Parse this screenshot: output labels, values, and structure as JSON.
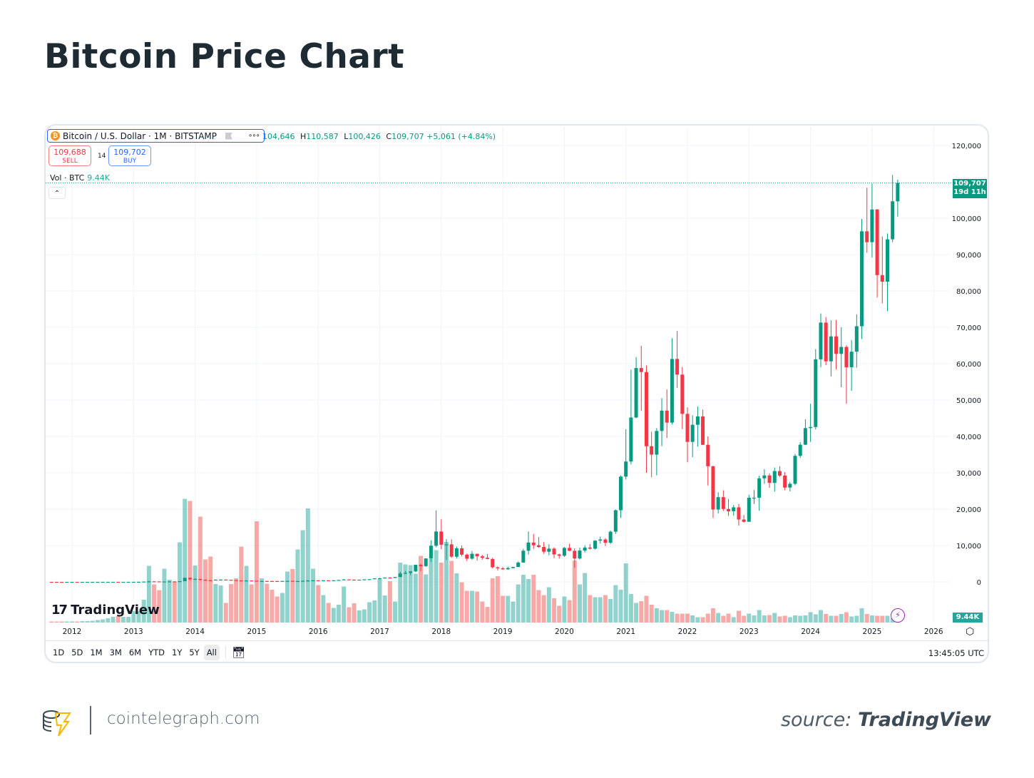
{
  "page": {
    "title": "Bitcoin Price Chart"
  },
  "legend": {
    "symbol_icon": "bitcoin-icon",
    "symbol": "Bitcoin / U.S. Dollar · 1M · BITSTAMP",
    "open_value": "104,646",
    "high_label": "H",
    "high_value": "110,587",
    "low_label": "L",
    "low_value": "100,426",
    "close_label": "C",
    "close_value": "109,707",
    "change": "+5,061 (+4.84%)"
  },
  "trade": {
    "sell_price": "109,688",
    "sell_label": "SELL",
    "spread": "14",
    "buy_price": "109,702",
    "buy_label": "BUY"
  },
  "volume_legend": {
    "label": "Vol · BTC",
    "value": "9.44K"
  },
  "price_tag": {
    "price": "109,707",
    "countdown": "19d 11h"
  },
  "volume_tag": "9.44K",
  "watermark": "TradingView",
  "toolbar": {
    "ranges": [
      "1D",
      "5D",
      "1M",
      "3M",
      "6M",
      "YTD",
      "1Y",
      "5Y",
      "All"
    ],
    "active": "All",
    "clock": "13:45:05 UTC"
  },
  "footer": {
    "site": "cointelegraph.com",
    "source_prefix": "source:",
    "source_name": "TradingView"
  },
  "colors": {
    "up": "#089981",
    "down": "#f23645",
    "vol_up": "#26a69a",
    "vol_down": "#ef5350",
    "price_line": "#089981"
  },
  "chart_data": {
    "type": "candlestick",
    "interval": "1M",
    "start": "2011-09",
    "ylim": [
      -11000,
      123000
    ],
    "yticks": [
      0,
      10000,
      20000,
      30000,
      40000,
      50000,
      60000,
      70000,
      80000,
      90000,
      100000,
      110000,
      120000
    ],
    "ytick_labels": [
      "0",
      "10,000",
      "20,000",
      "30,000",
      "40,000",
      "50,000",
      "60,000",
      "70,000",
      "80,000",
      "90,000",
      "100,000",
      "",
      "120,000"
    ],
    "xtick_labels": [
      "2012",
      "2013",
      "2014",
      "2015",
      "2016",
      "2017",
      "2018",
      "2019",
      "2020",
      "2021",
      "2022",
      "2023",
      "2024",
      "2025",
      "2026"
    ],
    "last_price": 109707,
    "grid": true,
    "ohlc": [
      [
        8.2,
        8.2,
        4.8,
        5.1
      ],
      [
        5.1,
        5.2,
        2.3,
        3.2
      ],
      [
        3.2,
        3.5,
        2.0,
        3.0
      ],
      [
        3.0,
        4.6,
        2.8,
        4.2
      ],
      [
        4.2,
        7.2,
        4.2,
        5.5
      ],
      [
        5.5,
        6.1,
        4.3,
        4.9
      ],
      [
        4.9,
        5.4,
        4.6,
        4.9
      ],
      [
        4.9,
        5.2,
        4.7,
        5.0
      ],
      [
        5.0,
        5.2,
        4.9,
        5.2
      ],
      [
        5.2,
        6.7,
        5.2,
        6.6
      ],
      [
        6.6,
        9.6,
        6.5,
        9.3
      ],
      [
        9.3,
        15.4,
        7.1,
        10.2
      ],
      [
        10.2,
        12.5,
        9.9,
        12.4
      ],
      [
        12.4,
        12.6,
        10.2,
        11.2
      ],
      [
        11.2,
        12.7,
        10.5,
        12.6
      ],
      [
        12.6,
        14.0,
        12.6,
        13.5
      ],
      [
        13.5,
        21,
        13.4,
        20.4
      ],
      [
        20.4,
        33.4,
        19.6,
        33.4
      ],
      [
        33.4,
        95,
        33,
        93
      ],
      [
        93,
        266,
        50,
        139
      ],
      [
        139,
        140,
        79,
        129
      ],
      [
        129,
        130,
        88,
        97
      ],
      [
        97,
        111,
        65,
        106
      ],
      [
        106,
        136,
        97,
        135
      ],
      [
        135,
        144,
        100,
        133
      ],
      [
        133,
        220,
        100,
        198
      ],
      [
        198,
        1163,
        196,
        1120
      ],
      [
        1120,
        1150,
        400,
        732
      ],
      [
        732,
        1000,
        720,
        800
      ],
      [
        800,
        800,
        400,
        550
      ],
      [
        550,
        720,
        440,
        450
      ],
      [
        450,
        540,
        340,
        445
      ],
      [
        445,
        635,
        420,
        630
      ],
      [
        630,
        680,
        550,
        640
      ],
      [
        640,
        660,
        570,
        585
      ],
      [
        585,
        600,
        440,
        480
      ],
      [
        480,
        500,
        360,
        386
      ],
      [
        386,
        420,
        275,
        338
      ],
      [
        338,
        450,
        315,
        378
      ],
      [
        378,
        387,
        300,
        320
      ],
      [
        320,
        320,
        152,
        217
      ],
      [
        217,
        265,
        210,
        254
      ],
      [
        254,
        300,
        235,
        244
      ],
      [
        244,
        261,
        213,
        236
      ],
      [
        236,
        247,
        226,
        230
      ],
      [
        230,
        268,
        218,
        263
      ],
      [
        263,
        315,
        254,
        284
      ],
      [
        284,
        286,
        198,
        230
      ],
      [
        230,
        244,
        226,
        236
      ],
      [
        236,
        330,
        236,
        314
      ],
      [
        314,
        502,
        310,
        377
      ],
      [
        377,
        467,
        350,
        430
      ],
      [
        430,
        462,
        350,
        368
      ],
      [
        368,
        445,
        363,
        437
      ],
      [
        437,
        439,
        395,
        416
      ],
      [
        416,
        467,
        413,
        448
      ],
      [
        448,
        545,
        440,
        531
      ],
      [
        531,
        780,
        530,
        670
      ],
      [
        670,
        705,
        600,
        624
      ],
      [
        624,
        630,
        470,
        575
      ],
      [
        575,
        615,
        570,
        609
      ],
      [
        609,
        720,
        605,
        700
      ],
      [
        700,
        757,
        690,
        742
      ],
      [
        742,
        975,
        738,
        963
      ],
      [
        963,
        1150,
        750,
        970
      ],
      [
        970,
        1200,
        910,
        1190
      ],
      [
        1190,
        1300,
        890,
        1080
      ],
      [
        1080,
        1350,
        1080,
        1348
      ],
      [
        1348,
        2780,
        1340,
        2300
      ],
      [
        2300,
        3000,
        2120,
        2480
      ],
      [
        2480,
        2920,
        1850,
        2875
      ],
      [
        2875,
        4750,
        2700,
        4700
      ],
      [
        4700,
        4980,
        2970,
        4340
      ],
      [
        4340,
        6470,
        4100,
        6450
      ],
      [
        6450,
        11400,
        5500,
        9950
      ],
      [
        9950,
        19666,
        9500,
        13850
      ],
      [
        13850,
        17200,
        9000,
        10220
      ],
      [
        10220,
        11800,
        6000,
        10320
      ],
      [
        10320,
        11700,
        6600,
        6930
      ],
      [
        6930,
        9750,
        6430,
        9240
      ],
      [
        9240,
        10000,
        7000,
        7490
      ],
      [
        7490,
        7770,
        5750,
        6390
      ],
      [
        6390,
        8500,
        6070,
        7730
      ],
      [
        7730,
        7750,
        5880,
        7030
      ],
      [
        7030,
        7400,
        6100,
        6630
      ],
      [
        6630,
        7680,
        6200,
        6300
      ],
      [
        6300,
        6600,
        3650,
        4020
      ],
      [
        4020,
        4250,
        3120,
        3740
      ],
      [
        3740,
        4100,
        3350,
        3460
      ],
      [
        3460,
        4200,
        3350,
        3810
      ],
      [
        3810,
        4150,
        3720,
        4100
      ],
      [
        4100,
        5600,
        4080,
        5320
      ],
      [
        5320,
        9100,
        5320,
        8570
      ],
      [
        8570,
        13880,
        7510,
        10820
      ],
      [
        10820,
        13200,
        9070,
        10080
      ],
      [
        10080,
        12330,
        9330,
        9600
      ],
      [
        9600,
        10950,
        7710,
        8290
      ],
      [
        8290,
        10350,
        7300,
        9150
      ],
      [
        9150,
        9510,
        6520,
        7550
      ],
      [
        7550,
        7750,
        6430,
        7190
      ],
      [
        7190,
        9600,
        6860,
        9350
      ],
      [
        9350,
        10500,
        8450,
        8540
      ],
      [
        8540,
        9200,
        3850,
        6430
      ],
      [
        6430,
        9470,
        6150,
        8620
      ],
      [
        8620,
        10080,
        8100,
        9450
      ],
      [
        9450,
        10400,
        8900,
        9140
      ],
      [
        9140,
        11450,
        8900,
        11350
      ],
      [
        11350,
        12470,
        10530,
        11660
      ],
      [
        11660,
        12060,
        9850,
        10780
      ],
      [
        10780,
        14100,
        10400,
        13800
      ],
      [
        13800,
        19900,
        13200,
        19700
      ],
      [
        19700,
        29300,
        17600,
        28950
      ],
      [
        28950,
        41950,
        28150,
        33100
      ],
      [
        33100,
        58350,
        32300,
        45200
      ],
      [
        45200,
        61800,
        45000,
        58800
      ],
      [
        58800,
        64900,
        47000,
        57700
      ],
      [
        57700,
        59500,
        30000,
        37300
      ],
      [
        37300,
        41300,
        28800,
        35000
      ],
      [
        35000,
        42300,
        29300,
        41500
      ],
      [
        41500,
        50500,
        37300,
        47100
      ],
      [
        47100,
        52900,
        39600,
        43800
      ],
      [
        43800,
        67000,
        43300,
        61300
      ],
      [
        61300,
        69000,
        53300,
        57000
      ],
      [
        57000,
        59100,
        42000,
        46200
      ],
      [
        46200,
        48000,
        32900,
        38500
      ],
      [
        38500,
        45800,
        34300,
        43200
      ],
      [
        43200,
        48200,
        37200,
        45500
      ],
      [
        45500,
        47400,
        37600,
        37700
      ],
      [
        37700,
        40000,
        26500,
        31800
      ],
      [
        31800,
        31950,
        17600,
        19900
      ],
      [
        19900,
        24650,
        18800,
        23300
      ],
      [
        23300,
        25200,
        19500,
        20050
      ],
      [
        20050,
        22800,
        18150,
        19420
      ],
      [
        19420,
        21100,
        18200,
        20500
      ],
      [
        20500,
        21450,
        15500,
        17150
      ],
      [
        17150,
        18400,
        16300,
        16540
      ],
      [
        16540,
        23950,
        16500,
        23130
      ],
      [
        23130,
        25250,
        21400,
        23150
      ],
      [
        23150,
        29200,
        19550,
        28470
      ],
      [
        28470,
        31000,
        26950,
        29270
      ],
      [
        29270,
        29850,
        25850,
        27220
      ],
      [
        27220,
        31450,
        24800,
        30480
      ],
      [
        30480,
        31800,
        28850,
        29230
      ],
      [
        29230,
        30200,
        25200,
        25940
      ],
      [
        25940,
        27500,
        24900,
        26970
      ],
      [
        26970,
        35200,
        26550,
        34660
      ],
      [
        34660,
        38450,
        34100,
        37720
      ],
      [
        37720,
        44700,
        37600,
        42280
      ],
      [
        42280,
        48970,
        38500,
        42580
      ],
      [
        42580,
        64000,
        41900,
        61200
      ],
      [
        61200,
        73800,
        59000,
        71300
      ],
      [
        71300,
        72800,
        59600,
        60650
      ],
      [
        60650,
        71950,
        56500,
        67500
      ],
      [
        67500,
        72000,
        58400,
        62700
      ],
      [
        62700,
        70000,
        53500,
        64600
      ],
      [
        64600,
        65100,
        49000,
        59000
      ],
      [
        59000,
        66500,
        52550,
        63300
      ],
      [
        63300,
        73600,
        58900,
        70300
      ],
      [
        70300,
        99800,
        66800,
        96400
      ],
      [
        96400,
        108400,
        90500,
        93400
      ],
      [
        93400,
        109500,
        89200,
        102400
      ],
      [
        102400,
        102500,
        78200,
        84350
      ],
      [
        84350,
        95000,
        76600,
        82550
      ],
      [
        82550,
        95800,
        74400,
        94200
      ],
      [
        94200,
        111900,
        93400,
        104646
      ],
      [
        104646,
        110587,
        100426,
        109707
      ]
    ],
    "volume_k": [
      3,
      3,
      3,
      3,
      3,
      3,
      4,
      4,
      5,
      7,
      9,
      12,
      16,
      18,
      16,
      16,
      32,
      32,
      64,
      159,
      107,
      91,
      151,
      120,
      115,
      225,
      347,
      341,
      160,
      297,
      177,
      185,
      108,
      104,
      55,
      108,
      124,
      213,
      159,
      107,
      284,
      124,
      109,
      92,
      73,
      83,
      143,
      150,
      205,
      259,
      320,
      151,
      105,
      77,
      55,
      41,
      50,
      101,
      43,
      54,
      34,
      37,
      57,
      62,
      121,
      76,
      116,
      59,
      168,
      163,
      161,
      137,
      187,
      135,
      179,
      203,
      168,
      226,
      173,
      138,
      113,
      89,
      89,
      87,
      59,
      44,
      124,
      130,
      75,
      75,
      59,
      107,
      134,
      122,
      134,
      91,
      77,
      99,
      68,
      47,
      73,
      63,
      174,
      107,
      139,
      77,
      71,
      71,
      77,
      66,
      105,
      92,
      166,
      80,
      55,
      60,
      75,
      50,
      40,
      35,
      35,
      30,
      25,
      25,
      25,
      20,
      15,
      15,
      25,
      40,
      27,
      19,
      25,
      15,
      33,
      19,
      25,
      20,
      35,
      20,
      21,
      27,
      17,
      19,
      15,
      20,
      19,
      20,
      29,
      23,
      35,
      24,
      19,
      19,
      24,
      29,
      17,
      19,
      40,
      24,
      20,
      19,
      19,
      19,
      12,
      9.44
    ]
  }
}
